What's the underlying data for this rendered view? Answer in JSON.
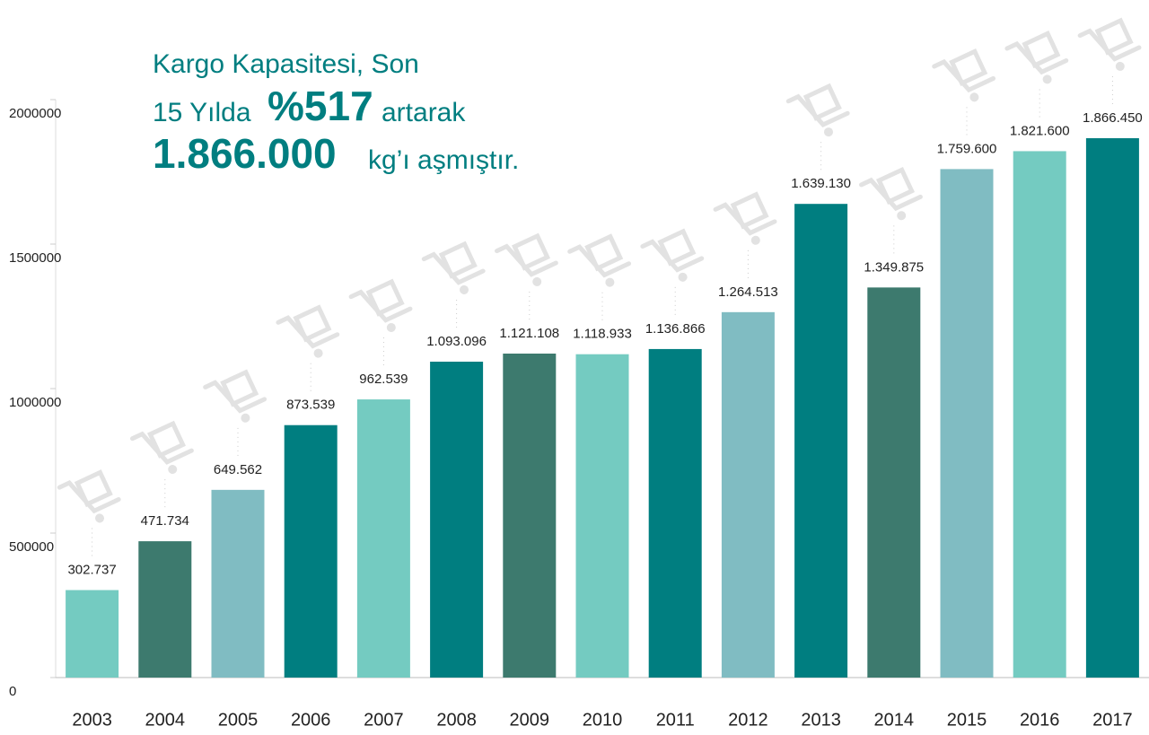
{
  "chart_data": {
    "type": "bar",
    "title": [
      "Kargo Kapasitesi, Son",
      "15 Yılda",
      "%517",
      "artarak",
      "1.866.000",
      "kg’ı aşmıştır."
    ],
    "categories": [
      "2003",
      "2004",
      "2005",
      "2006",
      "2007",
      "2008",
      "2009",
      "2010",
      "2011",
      "2012",
      "2013",
      "2014",
      "2015",
      "2016",
      "2017"
    ],
    "values": [
      302737,
      471734,
      649562,
      873539,
      962539,
      1093096,
      1121108,
      1118933,
      1136866,
      1264513,
      1639130,
      1349875,
      1759600,
      1821600,
      1866450
    ],
    "value_labels": [
      "302.737",
      "471.734",
      "649.562",
      "873.539",
      "962.539",
      "1.093.096",
      "1.121.108",
      "1.118.933",
      "1.136.866",
      "1.264.513",
      "1.639.130",
      "1.349.875",
      "1.759.600",
      "1.821.600",
      "1.866.450"
    ],
    "colors": [
      "#74cbc1",
      "#3d7a6e",
      "#80bcc2",
      "#007e80",
      "#74cbc1",
      "#007e80",
      "#3d7a6e",
      "#74cbc1",
      "#007e80",
      "#80bcc2",
      "#007e80",
      "#3d7a6e",
      "#80bcc2",
      "#74cbc1",
      "#007e80"
    ],
    "ylim": [
      0,
      2000000
    ],
    "yticks": [
      0,
      500000,
      1000000,
      1500000,
      2000000
    ]
  }
}
